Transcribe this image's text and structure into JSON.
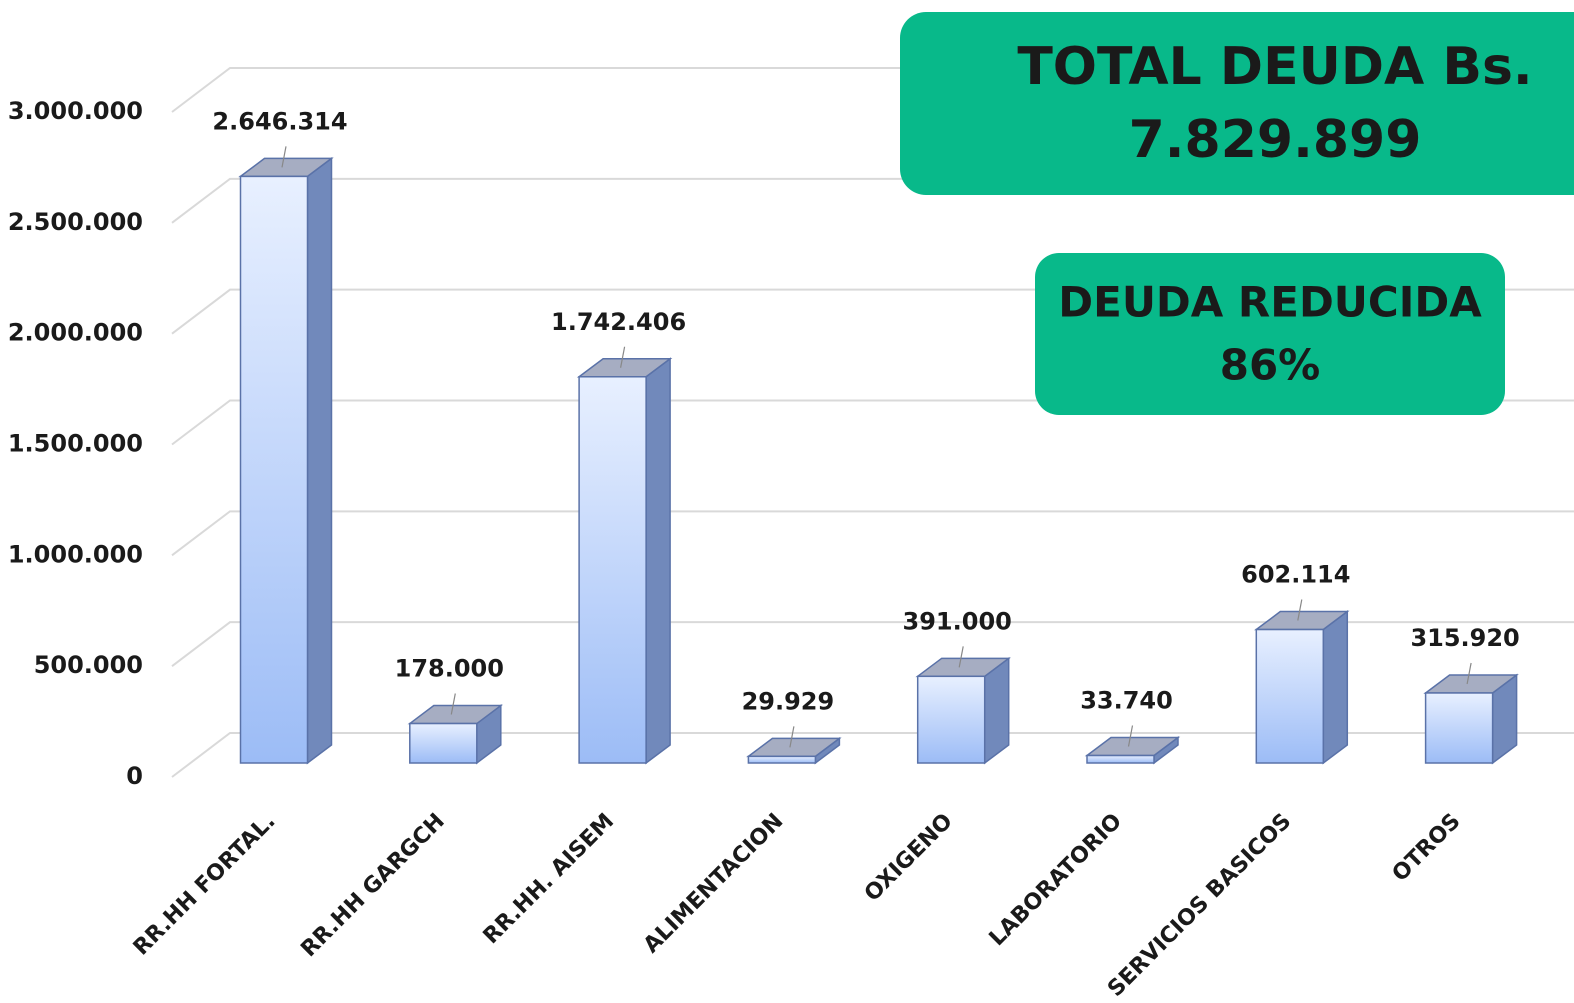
{
  "chart_data": {
    "type": "bar3d",
    "categories": [
      "RR.HH FORTAL.",
      "RR.HH GARGCH",
      "RR.HH. AISEM",
      "ALIMENTACION",
      "OXIGENO",
      "LABORATORIO",
      "SERVICIOS BASICOS",
      "OTROS"
    ],
    "values": [
      2646314,
      178000,
      1742406,
      29929,
      391000,
      33740,
      602114,
      315920
    ],
    "value_labels": [
      "2.646.314",
      "178.000",
      "1.742.406",
      "29.929",
      "391.000",
      "33.740",
      "602.114",
      "315.920"
    ],
    "color": "#a9c6fa",
    "ylim": [
      0,
      3000000
    ],
    "yticks": [
      0,
      {
        "value": 500000,
        "label": "500.000"
      },
      {
        "value": 1000000,
        "label": "1.000.000"
      },
      {
        "value": 1500000,
        "label": "1.500.000"
      },
      {
        "value": 2000000,
        "label": "2.000.000"
      },
      {
        "value": 2500000,
        "label": "2.500.000"
      },
      {
        "value": 3000000,
        "label": "3.000.000"
      }
    ],
    "grid": true,
    "annotations": [
      "TOTAL DEUDA Bs.",
      "7.829.899",
      "DEUDA REDUCIDA",
      "86%"
    ]
  }
}
